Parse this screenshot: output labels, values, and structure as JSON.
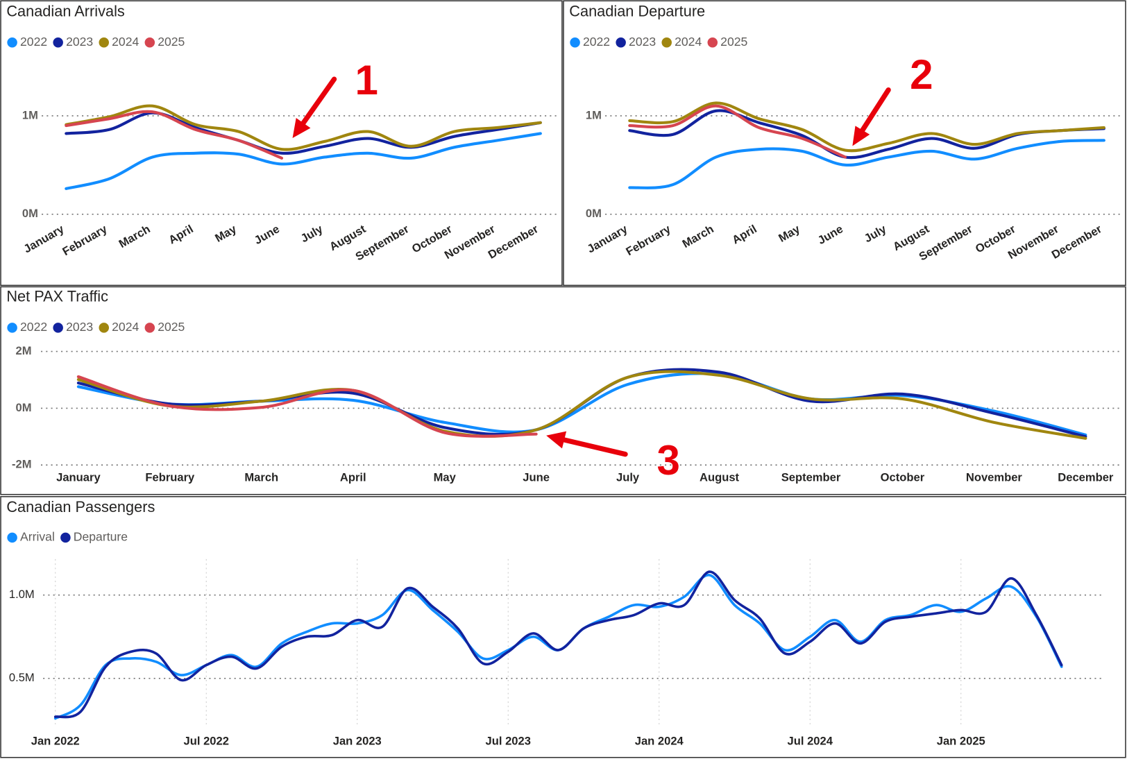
{
  "chart_data": [
    {
      "type": "line",
      "title": "Canadian Arrivals",
      "annotation": "1",
      "categories": [
        "January",
        "February",
        "March",
        "April",
        "May",
        "June",
        "July",
        "August",
        "September",
        "October",
        "November",
        "December"
      ],
      "series": [
        {
          "name": "2022",
          "color": "#118dff",
          "values": [
            260000,
            360000,
            580000,
            620000,
            610000,
            510000,
            580000,
            620000,
            570000,
            680000,
            750000,
            820000
          ]
        },
        {
          "name": "2023",
          "color": "#12239e",
          "values": [
            820000,
            860000,
            1030000,
            880000,
            750000,
            620000,
            690000,
            770000,
            680000,
            790000,
            860000,
            930000
          ]
        },
        {
          "name": "2024",
          "color": "#a0860f",
          "values": [
            910000,
            990000,
            1100000,
            910000,
            840000,
            660000,
            740000,
            840000,
            690000,
            840000,
            880000,
            930000
          ]
        },
        {
          "name": "2025",
          "color": "#d64550",
          "values": [
            900000,
            970000,
            1040000,
            860000,
            750000,
            570000,
            null,
            null,
            null,
            null,
            null,
            null
          ]
        }
      ],
      "ylim": [
        0,
        1500000
      ],
      "yticks": [
        {
          "value": 0,
          "label": "0M"
        },
        {
          "value": 1000000,
          "label": "1M"
        }
      ],
      "grid": true
    },
    {
      "type": "line",
      "title": "Canadian Departure",
      "annotation": "2",
      "categories": [
        "January",
        "February",
        "March",
        "April",
        "May",
        "June",
        "July",
        "August",
        "September",
        "October",
        "November",
        "December"
      ],
      "series": [
        {
          "name": "2022",
          "color": "#118dff",
          "values": [
            270000,
            300000,
            580000,
            660000,
            640000,
            500000,
            580000,
            640000,
            560000,
            670000,
            740000,
            750000
          ]
        },
        {
          "name": "2023",
          "color": "#12239e",
          "values": [
            850000,
            810000,
            1050000,
            930000,
            800000,
            580000,
            660000,
            770000,
            670000,
            810000,
            850000,
            870000
          ]
        },
        {
          "name": "2024",
          "color": "#a0860f",
          "values": [
            950000,
            940000,
            1130000,
            970000,
            860000,
            650000,
            720000,
            820000,
            710000,
            820000,
            850000,
            880000
          ]
        },
        {
          "name": "2025",
          "color": "#d64550",
          "values": [
            900000,
            900000,
            1100000,
            880000,
            770000,
            580000,
            null,
            null,
            null,
            null,
            null,
            null
          ]
        }
      ],
      "ylim": [
        0,
        1500000
      ],
      "yticks": [
        {
          "value": 0,
          "label": "0M"
        },
        {
          "value": 1000000,
          "label": "1M"
        }
      ],
      "grid": true
    },
    {
      "type": "line",
      "title": "Net PAX Traffic",
      "annotation": "3",
      "categories": [
        "January",
        "February",
        "March",
        "April",
        "May",
        "June",
        "July",
        "August",
        "September",
        "October",
        "November",
        "December"
      ],
      "series": [
        {
          "name": "2022",
          "color": "#118dff",
          "values": [
            760000,
            150000,
            250000,
            280000,
            -500000,
            -760000,
            840000,
            1200000,
            330000,
            450000,
            -100000,
            -940000
          ]
        },
        {
          "name": "2023",
          "color": "#12239e",
          "values": [
            890000,
            150000,
            250000,
            530000,
            -680000,
            -760000,
            1090000,
            1270000,
            250000,
            500000,
            -180000,
            -1000000
          ]
        },
        {
          "name": "2024",
          "color": "#a0860f",
          "values": [
            1010000,
            80000,
            250000,
            630000,
            -810000,
            -760000,
            1090000,
            1160000,
            330000,
            330000,
            -500000,
            -1060000
          ]
        },
        {
          "name": "2025",
          "color": "#d64550",
          "values": [
            1110000,
            80000,
            30000,
            630000,
            -860000,
            -910000,
            null,
            null,
            null,
            null,
            null,
            null
          ]
        }
      ],
      "ylim": [
        -2000000,
        2000000
      ],
      "yticks": [
        {
          "value": -2000000,
          "label": "-2M"
        },
        {
          "value": 0,
          "label": "0M"
        },
        {
          "value": 2000000,
          "label": "2M"
        }
      ],
      "grid": true
    },
    {
      "type": "line",
      "title": "Canadian Passengers",
      "x": [
        "2022-01",
        "2022-02",
        "2022-03",
        "2022-04",
        "2022-05",
        "2022-06",
        "2022-07",
        "2022-08",
        "2022-09",
        "2022-10",
        "2022-11",
        "2022-12",
        "2023-01",
        "2023-02",
        "2023-03",
        "2023-04",
        "2023-05",
        "2023-06",
        "2023-07",
        "2023-08",
        "2023-09",
        "2023-10",
        "2023-11",
        "2023-12",
        "2024-01",
        "2024-02",
        "2024-03",
        "2024-04",
        "2024-05",
        "2024-06",
        "2024-07",
        "2024-08",
        "2024-09",
        "2024-10",
        "2024-11",
        "2024-12",
        "2025-01",
        "2025-02",
        "2025-03",
        "2025-04",
        "2025-05"
      ],
      "series": [
        {
          "name": "Arrival",
          "color": "#118dff",
          "values": [
            260000,
            340000,
            580000,
            620000,
            600000,
            520000,
            580000,
            640000,
            570000,
            710000,
            780000,
            830000,
            830000,
            880000,
            1030000,
            910000,
            780000,
            620000,
            670000,
            750000,
            670000,
            800000,
            870000,
            940000,
            930000,
            990000,
            1120000,
            940000,
            830000,
            670000,
            750000,
            850000,
            720000,
            850000,
            880000,
            940000,
            900000,
            980000,
            1050000,
            870000,
            570000
          ]
        },
        {
          "name": "Departure",
          "color": "#12239e",
          "values": [
            270000,
            300000,
            570000,
            660000,
            650000,
            490000,
            580000,
            630000,
            560000,
            690000,
            750000,
            760000,
            850000,
            810000,
            1040000,
            930000,
            800000,
            590000,
            660000,
            770000,
            670000,
            800000,
            850000,
            880000,
            950000,
            940000,
            1140000,
            970000,
            860000,
            650000,
            720000,
            830000,
            710000,
            840000,
            870000,
            890000,
            910000,
            900000,
            1100000,
            880000,
            580000
          ]
        }
      ],
      "xticks": [
        {
          "value": "2022-01",
          "label": "Jan 2022"
        },
        {
          "value": "2022-07",
          "label": "Jul 2022"
        },
        {
          "value": "2023-01",
          "label": "Jan 2023"
        },
        {
          "value": "2023-07",
          "label": "Jul 2023"
        },
        {
          "value": "2024-01",
          "label": "Jan 2024"
        },
        {
          "value": "2024-07",
          "label": "Jul 2024"
        },
        {
          "value": "2025-01",
          "label": "Jan 2025"
        }
      ],
      "ylim": [
        200000,
        1250000
      ],
      "yticks": [
        {
          "value": 500000,
          "label": "0.5M"
        },
        {
          "value": 1000000,
          "label": "1.0M"
        }
      ],
      "grid": true
    }
  ]
}
